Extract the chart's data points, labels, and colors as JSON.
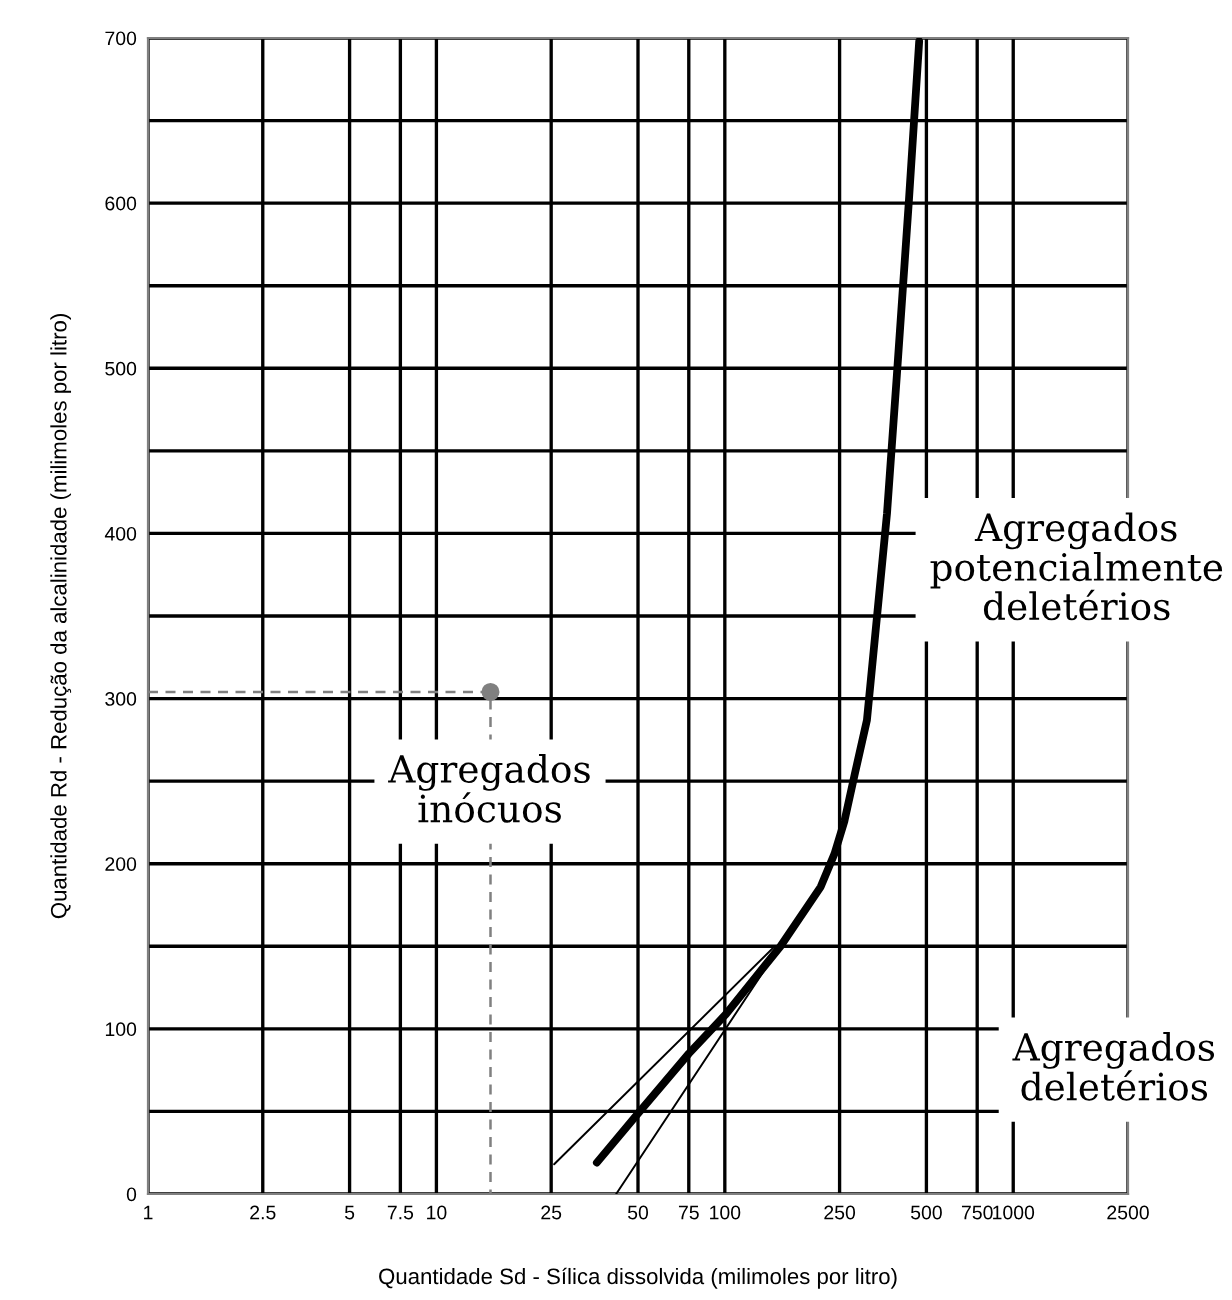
{
  "chart_data": {
    "type": "line",
    "xlabel": "Quantidade Sd - Sílica dissolvida (milimoles por litro)",
    "ylabel": "Quantidade Rd - Redução da alcalinidade (milimoles por litro)",
    "log": "x",
    "xlim": [
      1,
      2500
    ],
    "ylim": [
      0,
      700
    ],
    "xticks": [
      1,
      2.5,
      5,
      7.5,
      10,
      25,
      50,
      75,
      100,
      250,
      500,
      750,
      1000,
      2500
    ],
    "yticks": [
      0,
      {
        "value": 50,
        "label": null
      },
      100,
      {
        "value": 150,
        "label": null
      },
      200,
      {
        "value": 250,
        "label": null
      },
      300,
      {
        "value": 350,
        "label": null
      },
      400,
      {
        "value": 450,
        "label": null
      },
      500,
      {
        "value": 550,
        "label": null
      },
      600,
      {
        "value": 650,
        "label": null
      },
      700
    ],
    "grid": true,
    "series": [
      {
        "color": "#000000",
        "line_style": "solid",
        "x": [
          36,
          49,
          75,
          101,
          156,
          215,
          240,
          260,
          282,
          311,
          365,
          395,
          435,
          472
        ],
        "values": [
          19,
          47,
          85,
          109,
          150,
          186,
          206,
          226,
          254,
          287,
          412,
          496,
          602,
          698
        ]
      },
      {
        "color": "#000000",
        "line_style": "solid",
        "x": [
          25.6,
          149
        ],
        "values": [
          18,
          150
        ]
      },
      {
        "color": "#000000",
        "line_style": "solid",
        "x": [
          42,
          149
        ],
        "values": [
          0,
          145
        ]
      },
      {
        "color": "#808080",
        "line_style": "dashed",
        "x": [
          1,
          15.4,
          15.4
        ],
        "values": [
          304,
          304,
          0
        ]
      },
      {
        "type": "scatter",
        "color": "#808080",
        "marker": "circle",
        "x": [
          15.4
        ],
        "values": [
          304
        ]
      }
    ],
    "annotations": [
      "Agregados\ninócuos",
      "Agregados\npotencialmente\ndeletérios",
      "Agregados\ndeletérios"
    ]
  }
}
